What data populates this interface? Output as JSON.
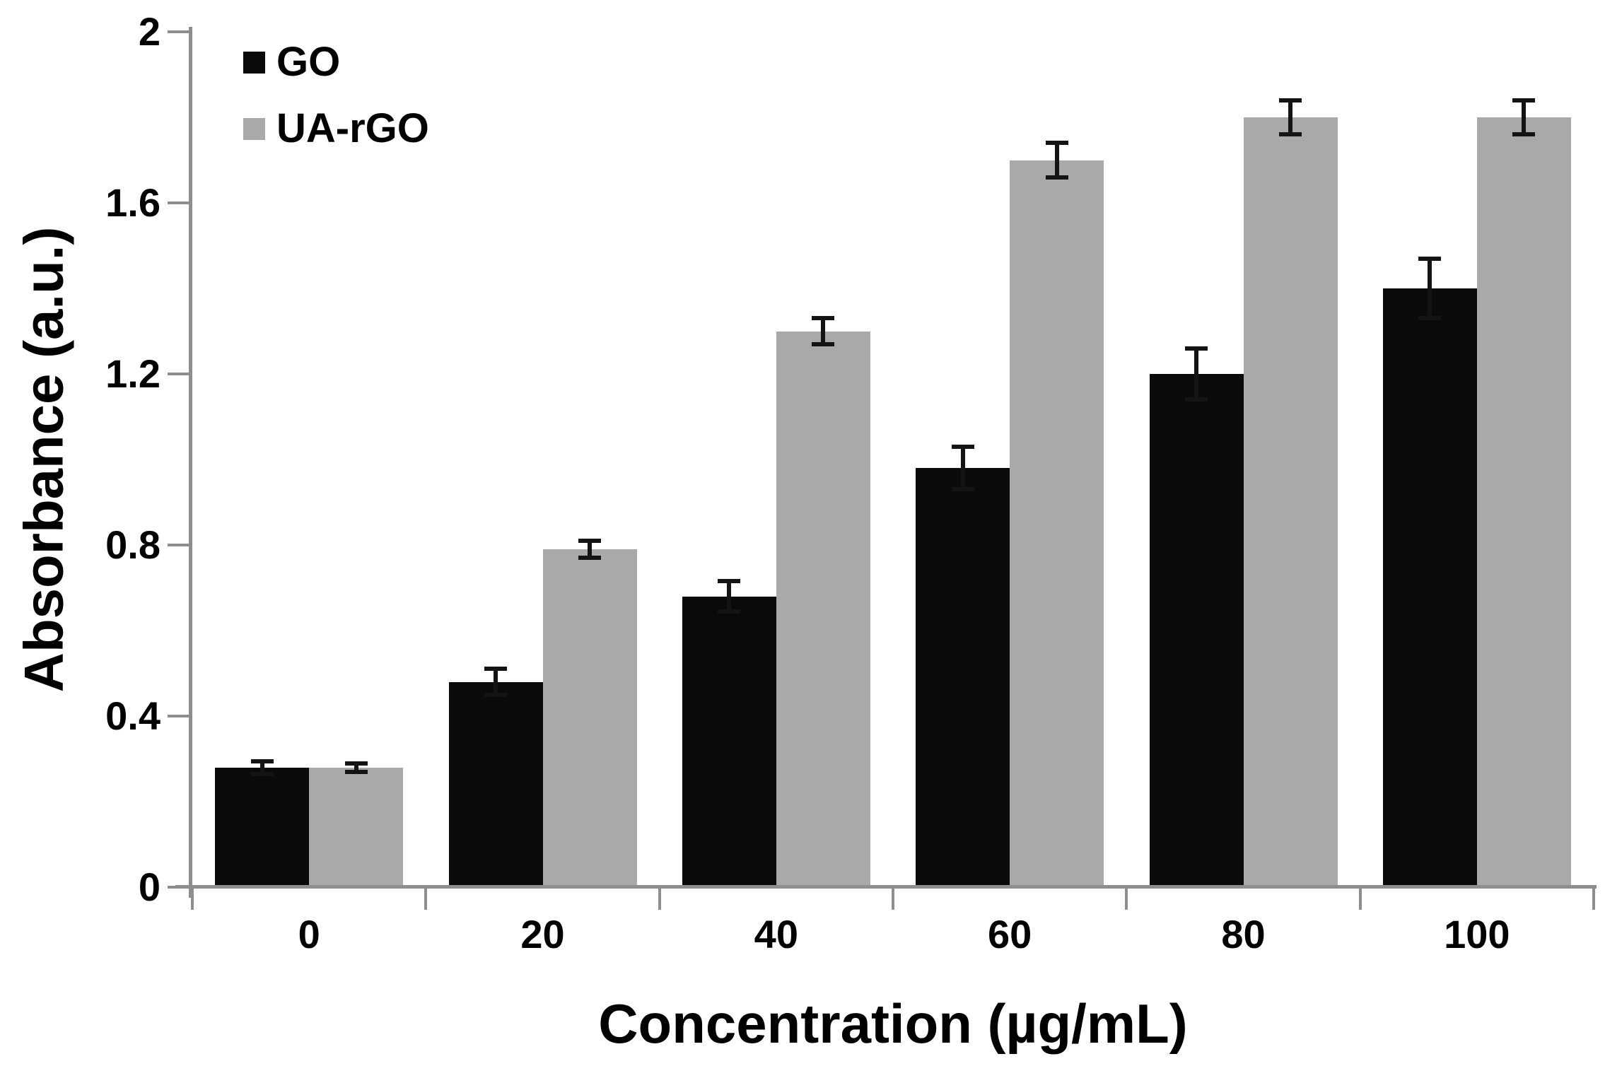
{
  "chart_data": {
    "type": "bar",
    "title": "",
    "xlabel": "Concentration (µg/mL)",
    "ylabel": "Absorbance (a.u.)",
    "categories": [
      "0",
      "20",
      "40",
      "60",
      "80",
      "100"
    ],
    "series": [
      {
        "name": "GO",
        "color": "#0a0a0a",
        "values": [
          0.28,
          0.48,
          0.68,
          0.98,
          1.2,
          1.4
        ],
        "errors": [
          0.015,
          0.03,
          0.035,
          0.05,
          0.06,
          0.07
        ]
      },
      {
        "name": "UA-rGO",
        "color": "#a9a9a9",
        "values": [
          0.28,
          0.79,
          1.3,
          1.7,
          1.8,
          1.8
        ],
        "errors": [
          0.01,
          0.02,
          0.03,
          0.04,
          0.04,
          0.04
        ]
      }
    ],
    "y_axis": {
      "min": 0,
      "max": 2,
      "tick_step": 0.4,
      "tick_labels": [
        "0",
        "0.4",
        "0.8",
        "1.2",
        "1.6",
        "2"
      ]
    },
    "x_axis": {
      "tick_count": 7
    },
    "legend": {
      "position": "top-left",
      "entries": [
        "GO",
        "UA-rGO"
      ]
    },
    "grid": false,
    "error_bars": true,
    "error_bar_color": "#141414",
    "axis_color": "#8e8e8e",
    "background_color": "#ffffff",
    "text_color": "#000000"
  }
}
